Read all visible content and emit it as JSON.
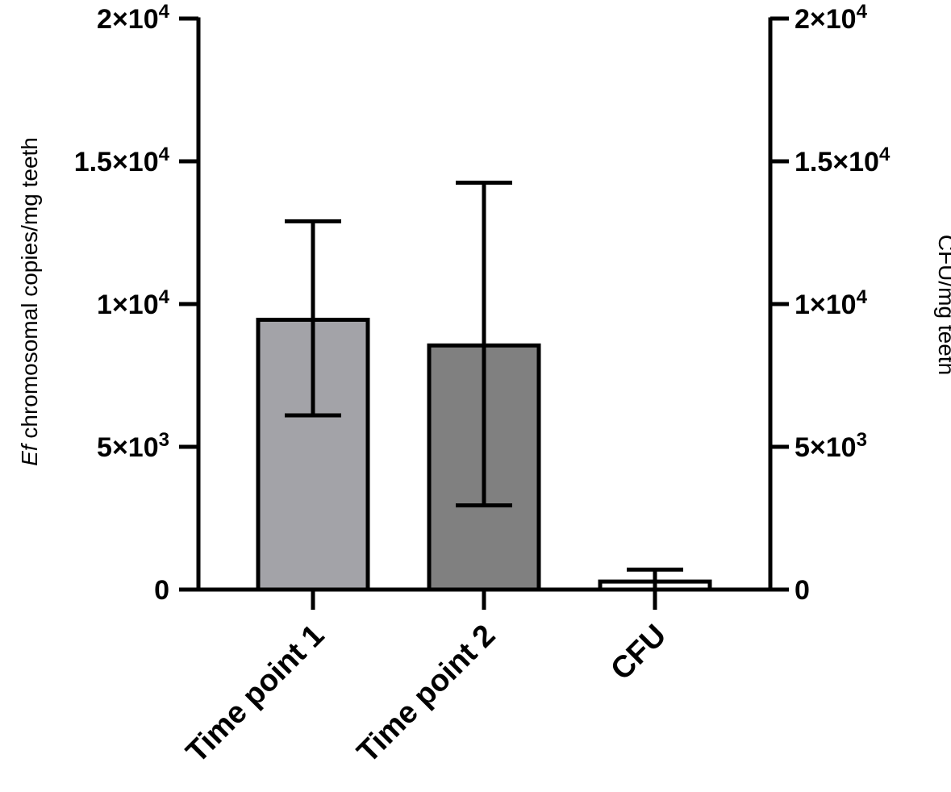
{
  "chart_data": {
    "type": "bar",
    "categories": [
      "Time point 1",
      "Time point 2",
      "CFU"
    ],
    "values": [
      9450,
      8550,
      280
    ],
    "errors": [
      {
        "low": 6100,
        "high": 12900
      },
      {
        "low": 2950,
        "high": 14250
      },
      {
        "low": 0,
        "high": 700
      }
    ],
    "colors": [
      "#a3a3a8",
      "#808080",
      "#ffffff"
    ],
    "ylim": [
      0,
      20000
    ],
    "yticks": [
      0,
      5000,
      10000,
      15000,
      20000
    ],
    "ytick_labels": [
      {
        "mant": "0",
        "exp": ""
      },
      {
        "mant": "5×10",
        "exp": "3"
      },
      {
        "mant": "1×10",
        "exp": "4"
      },
      {
        "mant": "1.5×10",
        "exp": "4"
      },
      {
        "mant": "2×10",
        "exp": "4"
      }
    ],
    "ylabel_left": {
      "italic": "Ef",
      "rest": " chromosomal copies/mg teeth"
    },
    "ylabel_right": "CFU/mg teeth",
    "grid": false
  }
}
